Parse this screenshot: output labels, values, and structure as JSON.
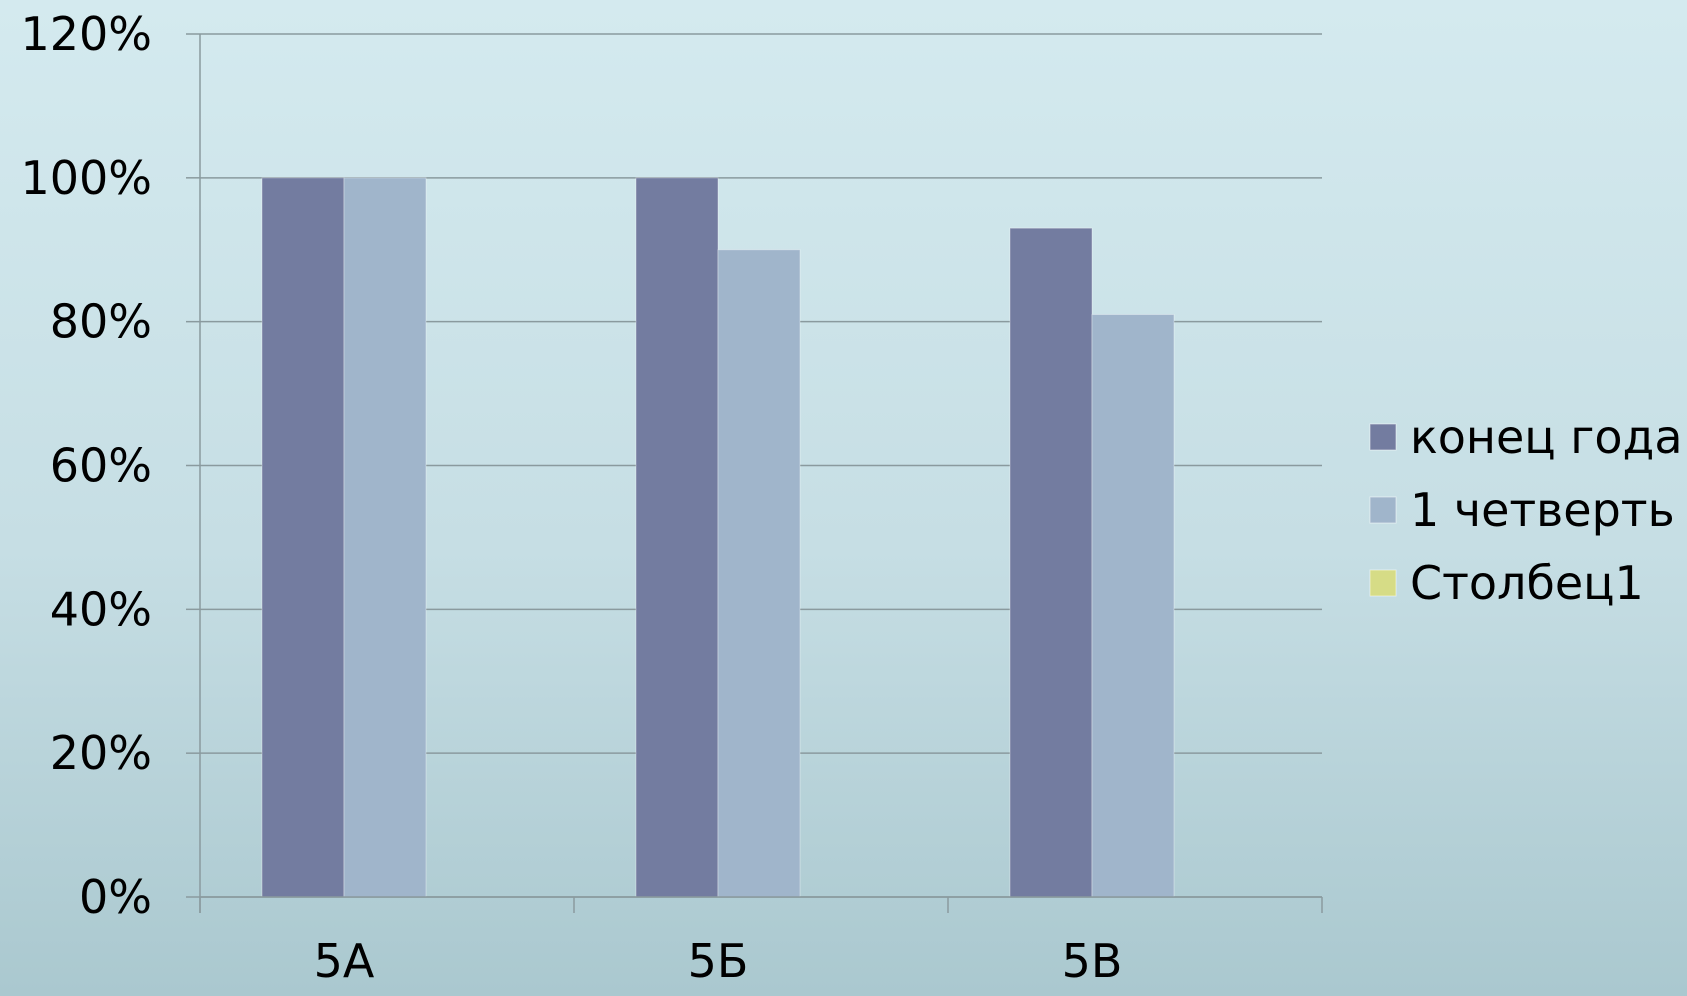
{
  "chart_data": {
    "type": "bar",
    "categories": [
      "5А",
      "5Б",
      "5В"
    ],
    "series": [
      {
        "name": "конец года",
        "values": [
          100,
          100,
          93
        ],
        "color": "#737ca0"
      },
      {
        "name": "1 четверть",
        "values": [
          100,
          90,
          81
        ],
        "color": "#a0b5cb"
      },
      {
        "name": "Столбец1",
        "values": [
          null,
          null,
          null
        ],
        "color": "#d6dc86"
      }
    ],
    "y_ticks": [
      "0%",
      "20%",
      "40%",
      "60%",
      "80%",
      "100%",
      "120%"
    ],
    "ylim": [
      0,
      120
    ],
    "grid": true,
    "legend_position": "right",
    "gridline_color": "#8a9a9e"
  }
}
